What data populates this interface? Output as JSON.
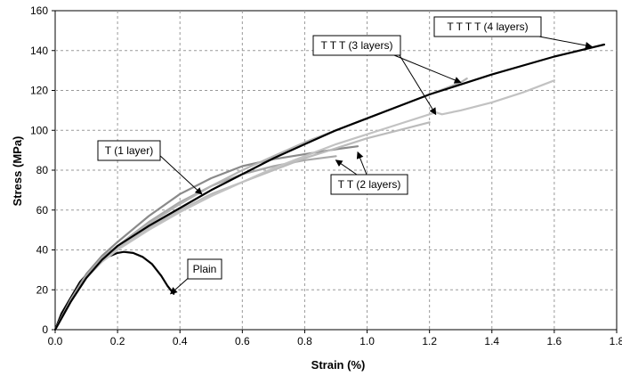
{
  "chart_data": {
    "type": "line",
    "title": "",
    "xlabel": "Strain (%)",
    "ylabel": "Stress (MPa)",
    "xlim": [
      0,
      1.8
    ],
    "ylim": [
      0,
      160
    ],
    "x_ticks": [
      0.0,
      0.2,
      0.4,
      0.6,
      0.8,
      1.0,
      1.2,
      1.4,
      1.6,
      1.8
    ],
    "x_tick_labels": [
      "0.0",
      "0.2",
      "0.4",
      "0.6",
      "0.8",
      "1.0",
      "1.2",
      "1.4",
      "1.6",
      "1.8"
    ],
    "y_ticks": [
      0,
      20,
      40,
      60,
      80,
      100,
      120,
      140,
      160
    ],
    "y_tick_labels": [
      "0",
      "20",
      "40",
      "60",
      "80",
      "100",
      "120",
      "140",
      "160"
    ],
    "grid": "dashed",
    "legend": "none",
    "series": [
      {
        "name": "Plain",
        "color": "#000000",
        "x": [
          0,
          0.02,
          0.05,
          0.08,
          0.12,
          0.16,
          0.2,
          0.22,
          0.25,
          0.28,
          0.31,
          0.34,
          0.36,
          0.38
        ],
        "y": [
          0,
          8,
          16,
          24,
          31,
          36,
          38.5,
          39,
          38.5,
          36.5,
          33,
          27,
          22,
          18
        ]
      },
      {
        "name": "T (1 layer)",
        "color": "#8a8a8a",
        "x": [
          0,
          0.05,
          0.1,
          0.15,
          0.2,
          0.3,
          0.4,
          0.5,
          0.6,
          0.7,
          0.8,
          0.9,
          0.97
        ],
        "y": [
          0,
          15,
          28,
          37,
          44,
          57,
          68,
          76,
          82,
          85.5,
          88,
          90.5,
          92
        ]
      },
      {
        "name": "T (1 layer)",
        "color": "#a9a9a9",
        "x": [
          0,
          0.05,
          0.1,
          0.15,
          0.2,
          0.3,
          0.4,
          0.5,
          0.6,
          0.7,
          0.8,
          0.9
        ],
        "y": [
          0,
          15,
          27,
          36,
          42,
          54,
          64,
          72,
          78,
          82,
          85,
          87
        ]
      },
      {
        "name": "T T (2 layers)",
        "color": "#bbbbbb",
        "x": [
          0,
          0.05,
          0.1,
          0.15,
          0.2,
          0.3,
          0.4,
          0.5,
          0.6,
          0.7,
          0.8,
          0.9,
          1.0,
          1.1,
          1.2
        ],
        "y": [
          0,
          14,
          26,
          35,
          41,
          51,
          60,
          68,
          74,
          80,
          86,
          91,
          96,
          100,
          104
        ]
      },
      {
        "name": "T T T (3 layers)",
        "color": "#c2c2c2",
        "x": [
          0,
          0.05,
          0.1,
          0.15,
          0.2,
          0.3,
          0.4,
          0.5,
          0.6,
          0.7,
          0.8,
          0.9,
          1.0,
          1.1,
          1.2,
          1.22,
          1.24,
          1.3,
          1.4,
          1.5,
          1.6
        ],
        "y": [
          0,
          14,
          26,
          34,
          40,
          50,
          59,
          67,
          74,
          81,
          87,
          93,
          98,
          103,
          108,
          109,
          108,
          110,
          114,
          119,
          125
        ]
      },
      {
        "name": "T T T (3 layers)",
        "color": "#b5b5b5",
        "x": [
          0,
          0.05,
          0.1,
          0.15,
          0.2,
          0.3,
          0.4,
          0.5,
          0.6,
          0.7,
          0.8,
          0.9,
          1.0,
          1.1,
          1.2,
          1.3,
          1.32
        ],
        "y": [
          0,
          14,
          26,
          35,
          42,
          53,
          63,
          72,
          80,
          87,
          94,
          100,
          106,
          112,
          118,
          124,
          126
        ]
      },
      {
        "name": "T T T T (4 layers)",
        "color": "#000000",
        "x": [
          0,
          0.05,
          0.1,
          0.15,
          0.2,
          0.3,
          0.4,
          0.5,
          0.6,
          0.7,
          0.8,
          0.9,
          1.0,
          1.2,
          1.4,
          1.6,
          1.76
        ],
        "y": [
          0,
          14,
          26,
          35,
          42,
          52,
          61,
          70,
          78,
          86,
          93,
          100,
          106,
          118,
          128,
          137,
          143
        ]
      }
    ],
    "annotations": [
      {
        "text": "T T T T (4 layers)",
        "arrows_to": [
          [
            1.72,
            142
          ]
        ]
      },
      {
        "text": "T T T (3 layers)",
        "arrows_to": [
          [
            1.3,
            124
          ],
          [
            1.22,
            108
          ]
        ]
      },
      {
        "text": "T (1 layer)",
        "arrows_to": [
          [
            0.47,
            68
          ]
        ]
      },
      {
        "text": "T T (2 layers)",
        "arrows_to": [
          [
            0.9,
            85
          ],
          [
            0.97,
            89
          ]
        ]
      },
      {
        "text": "Plain",
        "arrows_to": [
          [
            0.37,
            18
          ]
        ]
      }
    ]
  }
}
